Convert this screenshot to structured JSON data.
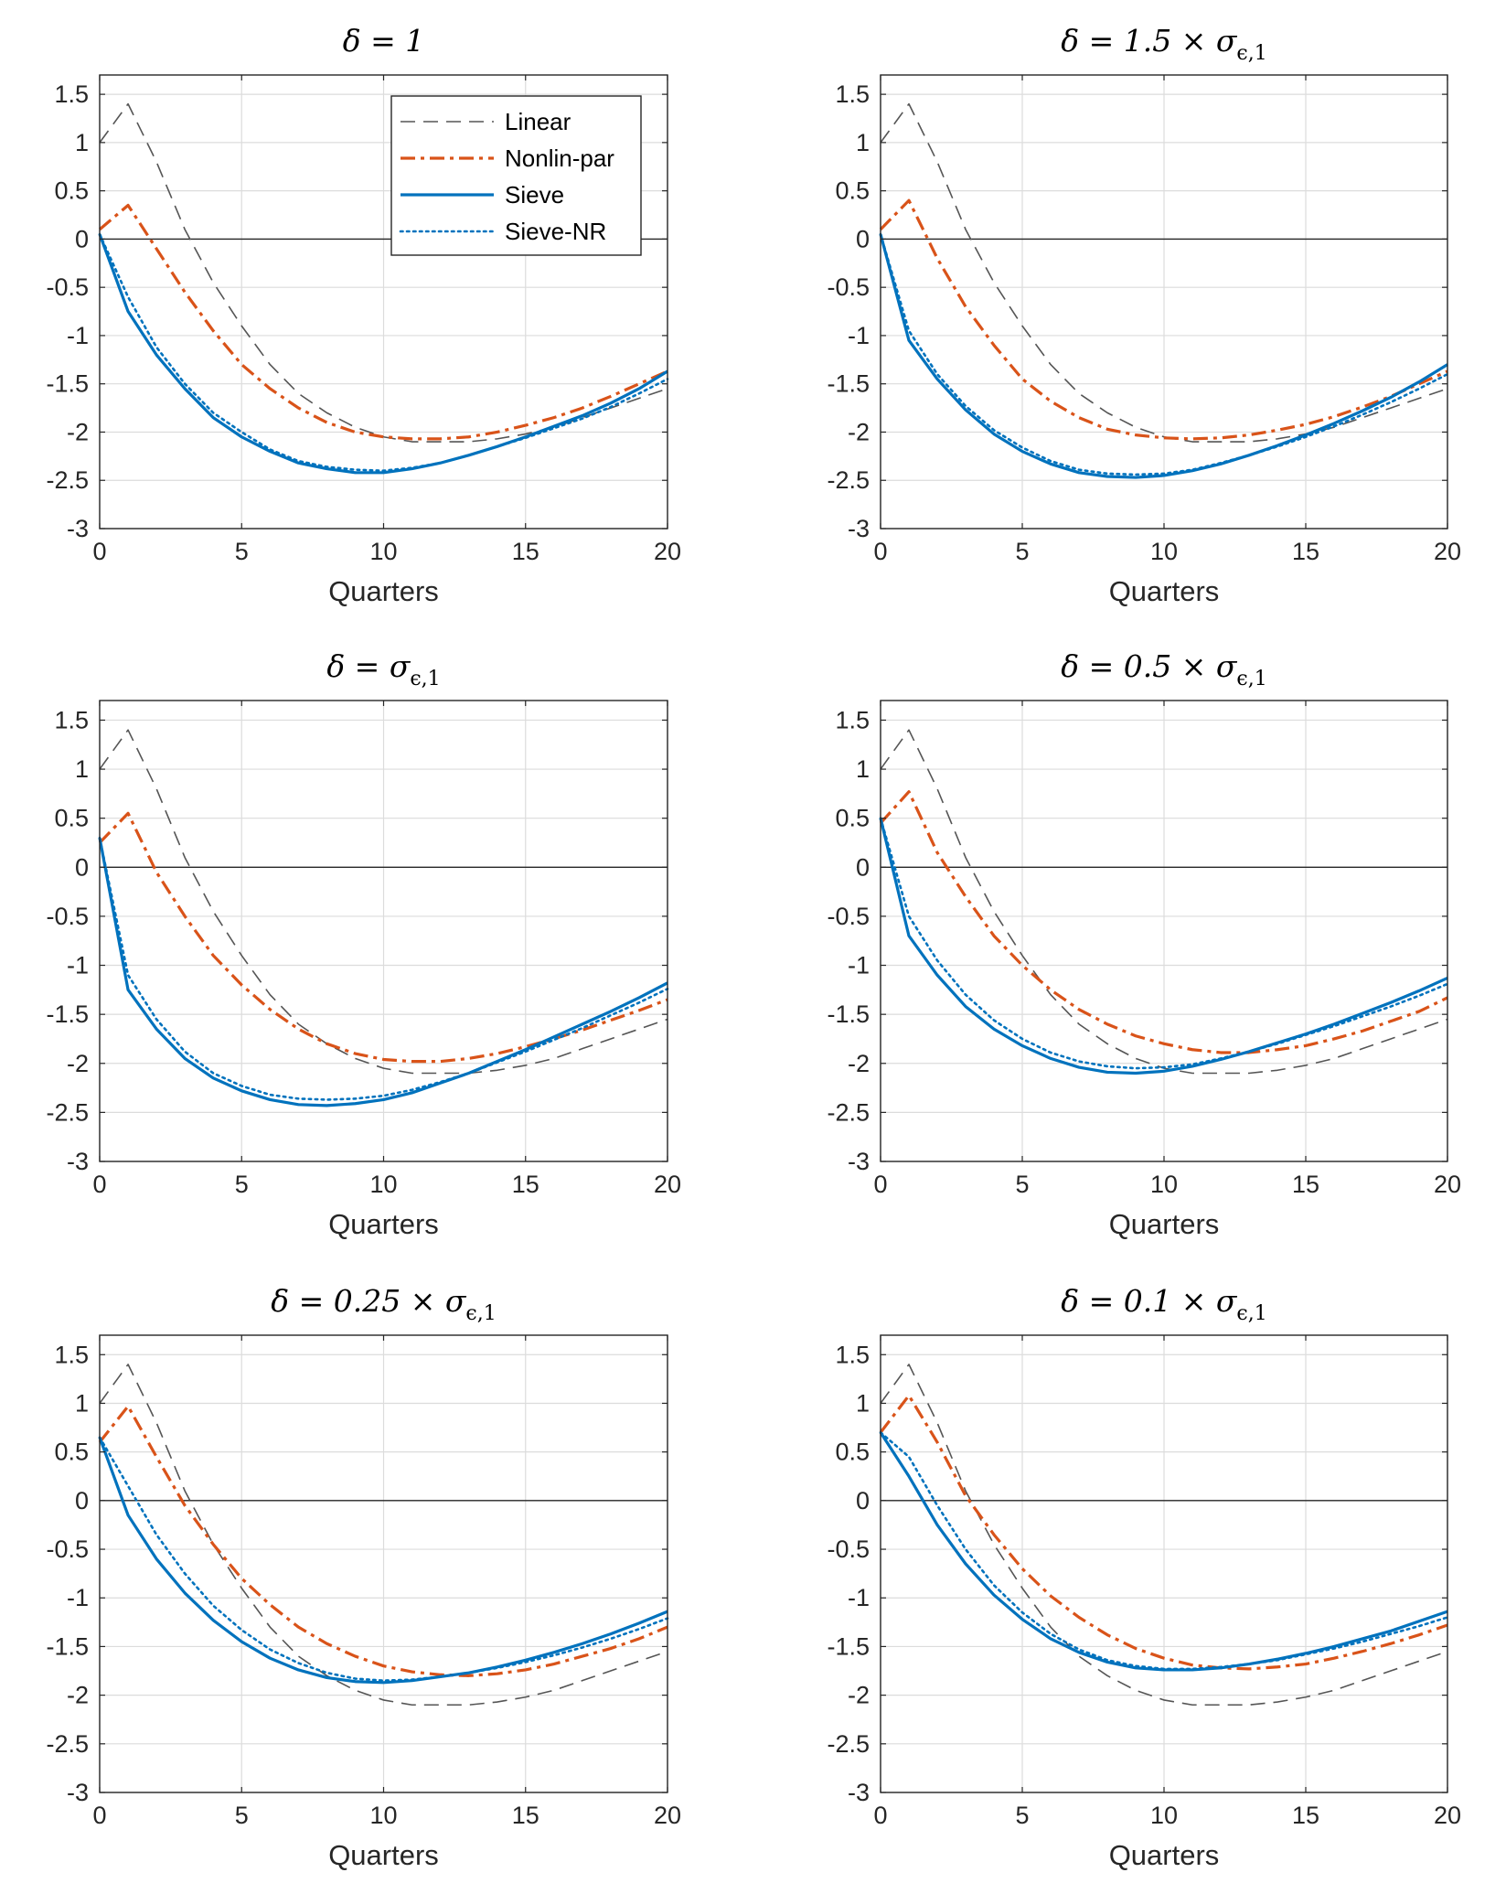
{
  "colors": {
    "linear": "#555555",
    "nonlin": "#D95319",
    "sieve": "#0072BD",
    "sieve_nr": "#0072BD",
    "zero_line": "#262626",
    "grid": "#dcdcdc",
    "axis": "#262626"
  },
  "chart_data": [
    {
      "type": "line",
      "title": {
        "pre": "δ = 1",
        "sym": "",
        "sub": ""
      },
      "xlabel": "Quarters",
      "ylabel": "",
      "xlim": [
        0,
        20
      ],
      "ylim": [
        -3,
        1.7
      ],
      "xticks": [
        "0",
        "5",
        "10",
        "15",
        "20"
      ],
      "yticks": [
        "1.5",
        "1",
        "0.5",
        "0",
        "-0.5",
        "-1",
        "-1.5",
        "-2",
        "-2.5",
        "-3"
      ],
      "grid": true,
      "legend_position": "top-right",
      "x": [
        0,
        1,
        2,
        3,
        4,
        5,
        6,
        7,
        8,
        9,
        10,
        11,
        12,
        13,
        14,
        15,
        16,
        17,
        18,
        19,
        20
      ],
      "series": [
        {
          "name": "Linear",
          "style": "dashed",
          "values": [
            1.0,
            1.4,
            0.8,
            0.1,
            -0.45,
            -0.9,
            -1.3,
            -1.6,
            -1.8,
            -1.95,
            -2.05,
            -2.1,
            -2.1,
            -2.1,
            -2.07,
            -2.02,
            -1.95,
            -1.85,
            -1.75,
            -1.65,
            -1.55
          ]
        },
        {
          "name": "Nonlin-par",
          "style": "dashdot",
          "values": [
            0.1,
            0.35,
            -0.1,
            -0.55,
            -0.95,
            -1.3,
            -1.55,
            -1.75,
            -1.9,
            -2.0,
            -2.05,
            -2.07,
            -2.07,
            -2.05,
            -2.0,
            -1.93,
            -1.85,
            -1.75,
            -1.63,
            -1.5,
            -1.37
          ]
        },
        {
          "name": "Sieve",
          "style": "solid",
          "values": [
            0.05,
            -0.75,
            -1.2,
            -1.55,
            -1.85,
            -2.05,
            -2.2,
            -2.32,
            -2.38,
            -2.42,
            -2.42,
            -2.38,
            -2.32,
            -2.24,
            -2.15,
            -2.05,
            -1.94,
            -1.83,
            -1.7,
            -1.55,
            -1.37
          ]
        },
        {
          "name": "Sieve-NR",
          "style": "dotted",
          "values": [
            0.05,
            -0.6,
            -1.12,
            -1.5,
            -1.8,
            -2.0,
            -2.18,
            -2.3,
            -2.36,
            -2.39,
            -2.4,
            -2.37,
            -2.32,
            -2.24,
            -2.15,
            -2.06,
            -1.96,
            -1.86,
            -1.74,
            -1.6,
            -1.45
          ]
        }
      ]
    },
    {
      "type": "line",
      "title": {
        "pre": "δ = 1.5 × ",
        "sym": "σ",
        "sub": "ϵ,1"
      },
      "xlabel": "Quarters",
      "ylabel": "",
      "xlim": [
        0,
        20
      ],
      "ylim": [
        -3,
        1.7
      ],
      "xticks": [
        "0",
        "5",
        "10",
        "15",
        "20"
      ],
      "yticks": [
        "1.5",
        "1",
        "0.5",
        "0",
        "-0.5",
        "-1",
        "-1.5",
        "-2",
        "-2.5",
        "-3"
      ],
      "grid": true,
      "x": [
        0,
        1,
        2,
        3,
        4,
        5,
        6,
        7,
        8,
        9,
        10,
        11,
        12,
        13,
        14,
        15,
        16,
        17,
        18,
        19,
        20
      ],
      "series": [
        {
          "name": "Linear",
          "style": "dashed",
          "values": [
            1.0,
            1.4,
            0.8,
            0.1,
            -0.45,
            -0.9,
            -1.3,
            -1.6,
            -1.8,
            -1.95,
            -2.05,
            -2.1,
            -2.1,
            -2.1,
            -2.07,
            -2.02,
            -1.95,
            -1.85,
            -1.75,
            -1.65,
            -1.55
          ]
        },
        {
          "name": "Nonlin-par",
          "style": "dashdot",
          "values": [
            0.1,
            0.4,
            -0.2,
            -0.7,
            -1.1,
            -1.45,
            -1.68,
            -1.85,
            -1.97,
            -2.03,
            -2.06,
            -2.07,
            -2.06,
            -2.03,
            -1.98,
            -1.92,
            -1.84,
            -1.74,
            -1.63,
            -1.5,
            -1.37
          ]
        },
        {
          "name": "Sieve",
          "style": "solid",
          "values": [
            0.05,
            -1.05,
            -1.45,
            -1.77,
            -2.02,
            -2.2,
            -2.33,
            -2.42,
            -2.46,
            -2.47,
            -2.45,
            -2.4,
            -2.33,
            -2.24,
            -2.14,
            -2.03,
            -1.91,
            -1.78,
            -1.64,
            -1.48,
            -1.3
          ]
        },
        {
          "name": "Sieve-NR",
          "style": "dotted",
          "values": [
            0.05,
            -0.95,
            -1.4,
            -1.73,
            -1.98,
            -2.16,
            -2.3,
            -2.39,
            -2.43,
            -2.44,
            -2.43,
            -2.39,
            -2.32,
            -2.24,
            -2.15,
            -2.05,
            -1.94,
            -1.82,
            -1.69,
            -1.55,
            -1.4
          ]
        }
      ]
    },
    {
      "type": "line",
      "title": {
        "pre": "δ = ",
        "sym": "σ",
        "sub": "ϵ,1"
      },
      "xlabel": "Quarters",
      "ylabel": "",
      "xlim": [
        0,
        20
      ],
      "ylim": [
        -3,
        1.7
      ],
      "xticks": [
        "0",
        "5",
        "10",
        "15",
        "20"
      ],
      "yticks": [
        "1.5",
        "1",
        "0.5",
        "0",
        "-0.5",
        "-1",
        "-1.5",
        "-2",
        "-2.5",
        "-3"
      ],
      "grid": true,
      "x": [
        0,
        1,
        2,
        3,
        4,
        5,
        6,
        7,
        8,
        9,
        10,
        11,
        12,
        13,
        14,
        15,
        16,
        17,
        18,
        19,
        20
      ],
      "series": [
        {
          "name": "Linear",
          "style": "dashed",
          "values": [
            1.0,
            1.4,
            0.8,
            0.1,
            -0.45,
            -0.9,
            -1.3,
            -1.6,
            -1.8,
            -1.95,
            -2.05,
            -2.1,
            -2.1,
            -2.1,
            -2.07,
            -2.02,
            -1.95,
            -1.85,
            -1.75,
            -1.65,
            -1.55
          ]
        },
        {
          "name": "Nonlin-par",
          "style": "dashdot",
          "values": [
            0.25,
            0.55,
            -0.05,
            -0.5,
            -0.9,
            -1.2,
            -1.45,
            -1.65,
            -1.8,
            -1.9,
            -1.96,
            -1.98,
            -1.98,
            -1.95,
            -1.9,
            -1.83,
            -1.75,
            -1.66,
            -1.56,
            -1.46,
            -1.35
          ]
        },
        {
          "name": "Sieve",
          "style": "solid",
          "values": [
            0.3,
            -1.25,
            -1.65,
            -1.95,
            -2.15,
            -2.28,
            -2.37,
            -2.42,
            -2.43,
            -2.41,
            -2.37,
            -2.3,
            -2.2,
            -2.1,
            -1.98,
            -1.86,
            -1.73,
            -1.6,
            -1.47,
            -1.33,
            -1.18
          ]
        },
        {
          "name": "Sieve-NR",
          "style": "dotted",
          "values": [
            0.3,
            -1.1,
            -1.55,
            -1.88,
            -2.1,
            -2.23,
            -2.32,
            -2.36,
            -2.37,
            -2.36,
            -2.33,
            -2.27,
            -2.19,
            -2.1,
            -1.99,
            -1.88,
            -1.76,
            -1.64,
            -1.51,
            -1.38,
            -1.24
          ]
        }
      ]
    },
    {
      "type": "line",
      "title": {
        "pre": "δ = 0.5 × ",
        "sym": "σ",
        "sub": "ϵ,1"
      },
      "xlabel": "Quarters",
      "ylabel": "",
      "xlim": [
        0,
        20
      ],
      "ylim": [
        -3,
        1.7
      ],
      "xticks": [
        "0",
        "5",
        "10",
        "15",
        "20"
      ],
      "yticks": [
        "1.5",
        "1",
        "0.5",
        "0",
        "-0.5",
        "-1",
        "-1.5",
        "-2",
        "-2.5",
        "-3"
      ],
      "grid": true,
      "x": [
        0,
        1,
        2,
        3,
        4,
        5,
        6,
        7,
        8,
        9,
        10,
        11,
        12,
        13,
        14,
        15,
        16,
        17,
        18,
        19,
        20
      ],
      "series": [
        {
          "name": "Linear",
          "style": "dashed",
          "values": [
            1.0,
            1.4,
            0.8,
            0.1,
            -0.45,
            -0.9,
            -1.3,
            -1.6,
            -1.8,
            -1.95,
            -2.05,
            -2.1,
            -2.1,
            -2.1,
            -2.07,
            -2.02,
            -1.95,
            -1.85,
            -1.75,
            -1.65,
            -1.55
          ]
        },
        {
          "name": "Nonlin-par",
          "style": "dashdot",
          "values": [
            0.45,
            0.77,
            0.15,
            -0.3,
            -0.7,
            -1.0,
            -1.25,
            -1.45,
            -1.6,
            -1.72,
            -1.8,
            -1.86,
            -1.89,
            -1.89,
            -1.86,
            -1.82,
            -1.75,
            -1.67,
            -1.57,
            -1.47,
            -1.33
          ]
        },
        {
          "name": "Sieve",
          "style": "solid",
          "values": [
            0.5,
            -0.7,
            -1.1,
            -1.42,
            -1.65,
            -1.82,
            -1.95,
            -2.04,
            -2.09,
            -2.1,
            -2.08,
            -2.03,
            -1.96,
            -1.88,
            -1.79,
            -1.7,
            -1.6,
            -1.49,
            -1.38,
            -1.26,
            -1.13
          ]
        },
        {
          "name": "Sieve-NR",
          "style": "dotted",
          "values": [
            0.5,
            -0.5,
            -0.95,
            -1.3,
            -1.56,
            -1.75,
            -1.89,
            -1.98,
            -2.03,
            -2.05,
            -2.04,
            -2.01,
            -1.95,
            -1.88,
            -1.8,
            -1.71,
            -1.62,
            -1.52,
            -1.42,
            -1.31,
            -1.19
          ]
        }
      ]
    },
    {
      "type": "line",
      "title": {
        "pre": "δ = 0.25 × ",
        "sym": "σ",
        "sub": "ϵ,1"
      },
      "xlabel": "Quarters",
      "ylabel": "",
      "xlim": [
        0,
        20
      ],
      "ylim": [
        -3,
        1.7
      ],
      "xticks": [
        "0",
        "5",
        "10",
        "15",
        "20"
      ],
      "yticks": [
        "1.5",
        "1",
        "0.5",
        "0",
        "-0.5",
        "-1",
        "-1.5",
        "-2",
        "-2.5",
        "-3"
      ],
      "grid": true,
      "x": [
        0,
        1,
        2,
        3,
        4,
        5,
        6,
        7,
        8,
        9,
        10,
        11,
        12,
        13,
        14,
        15,
        16,
        17,
        18,
        19,
        20
      ],
      "series": [
        {
          "name": "Linear",
          "style": "dashed",
          "values": [
            1.0,
            1.4,
            0.8,
            0.1,
            -0.45,
            -0.9,
            -1.3,
            -1.6,
            -1.8,
            -1.95,
            -2.05,
            -2.1,
            -2.1,
            -2.1,
            -2.07,
            -2.02,
            -1.95,
            -1.85,
            -1.75,
            -1.65,
            -1.55
          ]
        },
        {
          "name": "Nonlin-par",
          "style": "dashdot",
          "values": [
            0.6,
            0.97,
            0.45,
            -0.05,
            -0.45,
            -0.8,
            -1.07,
            -1.3,
            -1.47,
            -1.6,
            -1.7,
            -1.76,
            -1.79,
            -1.8,
            -1.78,
            -1.74,
            -1.68,
            -1.6,
            -1.52,
            -1.42,
            -1.3
          ]
        },
        {
          "name": "Sieve",
          "style": "solid",
          "values": [
            0.65,
            -0.15,
            -0.6,
            -0.95,
            -1.23,
            -1.45,
            -1.62,
            -1.74,
            -1.82,
            -1.86,
            -1.87,
            -1.85,
            -1.81,
            -1.77,
            -1.71,
            -1.64,
            -1.56,
            -1.47,
            -1.37,
            -1.26,
            -1.14
          ]
        },
        {
          "name": "Sieve-NR",
          "style": "dotted",
          "values": [
            0.65,
            0.15,
            -0.35,
            -0.75,
            -1.08,
            -1.33,
            -1.53,
            -1.67,
            -1.77,
            -1.83,
            -1.85,
            -1.84,
            -1.81,
            -1.77,
            -1.72,
            -1.66,
            -1.59,
            -1.51,
            -1.42,
            -1.32,
            -1.21
          ]
        }
      ]
    },
    {
      "type": "line",
      "title": {
        "pre": "δ = 0.1 × ",
        "sym": "σ",
        "sub": "ϵ,1"
      },
      "xlabel": "Quarters",
      "ylabel": "",
      "xlim": [
        0,
        20
      ],
      "ylim": [
        -3,
        1.7
      ],
      "xticks": [
        "0",
        "5",
        "10",
        "15",
        "20"
      ],
      "yticks": [
        "1.5",
        "1",
        "0.5",
        "0",
        "-0.5",
        "-1",
        "-1.5",
        "-2",
        "-2.5",
        "-3"
      ],
      "grid": true,
      "x": [
        0,
        1,
        2,
        3,
        4,
        5,
        6,
        7,
        8,
        9,
        10,
        11,
        12,
        13,
        14,
        15,
        16,
        17,
        18,
        19,
        20
      ],
      "series": [
        {
          "name": "Linear",
          "style": "dashed",
          "values": [
            1.0,
            1.4,
            0.8,
            0.1,
            -0.45,
            -0.9,
            -1.3,
            -1.6,
            -1.8,
            -1.95,
            -2.05,
            -2.1,
            -2.1,
            -2.1,
            -2.07,
            -2.02,
            -1.95,
            -1.85,
            -1.75,
            -1.65,
            -1.55
          ]
        },
        {
          "name": "Nonlin-par",
          "style": "dashdot",
          "values": [
            0.7,
            1.08,
            0.6,
            0.05,
            -0.35,
            -0.7,
            -0.98,
            -1.2,
            -1.38,
            -1.52,
            -1.62,
            -1.69,
            -1.72,
            -1.73,
            -1.71,
            -1.68,
            -1.62,
            -1.55,
            -1.47,
            -1.38,
            -1.28
          ]
        },
        {
          "name": "Sieve",
          "style": "solid",
          "values": [
            0.7,
            0.25,
            -0.25,
            -0.65,
            -0.97,
            -1.22,
            -1.42,
            -1.56,
            -1.66,
            -1.72,
            -1.74,
            -1.74,
            -1.72,
            -1.68,
            -1.63,
            -1.57,
            -1.5,
            -1.42,
            -1.34,
            -1.24,
            -1.14
          ]
        },
        {
          "name": "Sieve-NR",
          "style": "dotted",
          "values": [
            0.7,
            0.45,
            -0.05,
            -0.5,
            -0.87,
            -1.15,
            -1.37,
            -1.53,
            -1.64,
            -1.7,
            -1.73,
            -1.73,
            -1.71,
            -1.68,
            -1.64,
            -1.58,
            -1.52,
            -1.45,
            -1.37,
            -1.29,
            -1.2
          ]
        }
      ]
    }
  ]
}
